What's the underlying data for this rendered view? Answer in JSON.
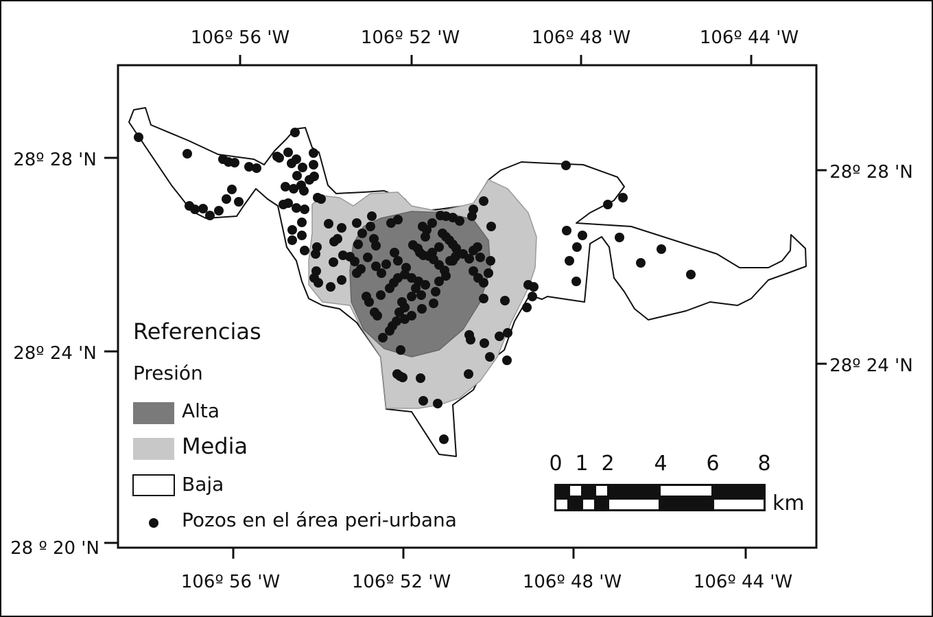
{
  "map": {
    "top_ticks": [
      "106º 56 'W",
      "106º 52 'W",
      "106º 48 'W",
      "106º 44 'W"
    ],
    "bottom_ticks": [
      "106º 56 'W",
      "106º 52 'W",
      "106º 48 'W",
      "106º 44 'W"
    ],
    "left_ticks": [
      "28º 28 'N",
      "28º 24 'N",
      "28 º 20 'N"
    ],
    "right_ticks": [
      "28º 28 'N",
      "28º 24 'N"
    ]
  },
  "legend": {
    "title": "Referencias",
    "subtitle": "Presión",
    "items": [
      {
        "label": "Alta",
        "color": "#7a7a7a"
      },
      {
        "label": "Media",
        "color": "#c8c8c8"
      },
      {
        "label": "Baja",
        "color": "#ffffff"
      },
      {
        "label": "Pozos en el área peri-urbana",
        "color": "#111111"
      }
    ]
  },
  "scale_bar": {
    "labels": [
      "0",
      "1",
      "2",
      "4",
      "6",
      "8"
    ],
    "unit": "km"
  },
  "colors": {
    "high_pressure": "#7a7a7a",
    "medium_pressure": "#c8c8c8",
    "low_pressure": "#ffffff",
    "wells": "#111111"
  }
}
